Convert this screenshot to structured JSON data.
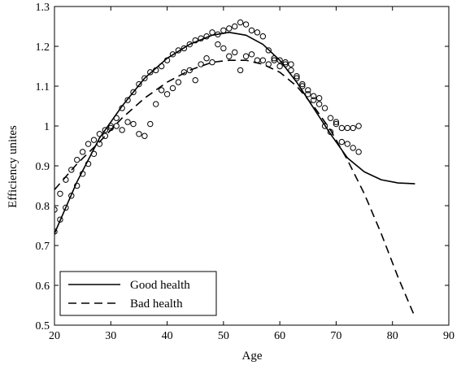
{
  "chart_data": {
    "type": "line",
    "title": "",
    "xlabel": "Age",
    "ylabel": "Efficiency unites",
    "xlim": [
      20,
      90
    ],
    "ylim": [
      0.5,
      1.3
    ],
    "xticks": [
      20,
      30,
      40,
      50,
      60,
      70,
      80,
      90
    ],
    "yticks": [
      0.5,
      0.6,
      0.7,
      0.8,
      0.9,
      1.0,
      1.1,
      1.2,
      1.3
    ],
    "xtick_labels": [
      "20",
      "30",
      "40",
      "50",
      "60",
      "70",
      "80",
      "90"
    ],
    "ytick_labels": [
      "0.5",
      "0.6",
      "0.7",
      "0.8",
      "0.9",
      "1",
      "1.1",
      "1.2",
      "1.3"
    ],
    "grid": false,
    "legend_position": "bottom-left",
    "series": [
      {
        "name": "Good health",
        "style": "solid",
        "color": "#000000",
        "x": [
          20,
          24,
          28,
          32,
          36,
          40,
          44,
          48,
          51,
          54,
          57,
          60,
          63,
          66,
          69,
          72,
          75,
          78,
          81,
          84
        ],
        "y": [
          0.73,
          0.86,
          0.97,
          1.05,
          1.12,
          1.17,
          1.205,
          1.228,
          1.235,
          1.228,
          1.205,
          1.165,
          1.11,
          1.045,
          0.98,
          0.92,
          0.885,
          0.865,
          0.857,
          0.855
        ]
      },
      {
        "name": "Bad health",
        "style": "dashed",
        "color": "#000000",
        "x": [
          20,
          24,
          28,
          32,
          36,
          40,
          44,
          48,
          51,
          54,
          57,
          60,
          63,
          66,
          69,
          72,
          75,
          78,
          81,
          84
        ],
        "y": [
          0.84,
          0.905,
          0.96,
          1.02,
          1.07,
          1.11,
          1.14,
          1.16,
          1.165,
          1.165,
          1.155,
          1.135,
          1.1,
          1.05,
          0.99,
          0.915,
          0.83,
          0.73,
          0.62,
          0.52
        ]
      },
      {
        "name": "",
        "style": "markers",
        "marker": "circle",
        "color": "#000000",
        "x": [
          20,
          21,
          22,
          23,
          24,
          25,
          26,
          27,
          28,
          29,
          30,
          31,
          32,
          33,
          34,
          35,
          36,
          37,
          38,
          39,
          40,
          41,
          42,
          43,
          44,
          45,
          46,
          47,
          48,
          49,
          50,
          51,
          52,
          53,
          54,
          55,
          56,
          57,
          58,
          59,
          60,
          61,
          62,
          63,
          64,
          65,
          66,
          67,
          68,
          69,
          70,
          71,
          72,
          73,
          74
        ],
        "y": [
          0.735,
          0.765,
          0.795,
          0.825,
          0.85,
          0.88,
          0.905,
          0.93,
          0.955,
          0.975,
          1.0,
          1.02,
          1.045,
          1.065,
          1.085,
          1.105,
          1.12,
          1.135,
          1.14,
          1.15,
          1.165,
          1.18,
          1.19,
          1.195,
          1.205,
          1.215,
          1.22,
          1.225,
          1.235,
          1.23,
          1.24,
          1.245,
          1.25,
          1.26,
          1.255,
          1.24,
          1.235,
          1.225,
          1.19,
          1.17,
          1.165,
          1.155,
          1.14,
          1.12,
          1.1,
          1.09,
          1.075,
          1.055,
          1.045,
          1.02,
          1.01,
          0.995,
          0.995,
          0.995,
          1.0
        ]
      },
      {
        "name": "",
        "style": "markers",
        "marker": "circle",
        "color": "#000000",
        "x": [
          20,
          21,
          22,
          23,
          24,
          25,
          26,
          27,
          28,
          29,
          30,
          31,
          32,
          33,
          34,
          35,
          36,
          37,
          38,
          39,
          40,
          41,
          42,
          43,
          44,
          45,
          46,
          47,
          48,
          49,
          50,
          51,
          52,
          53,
          54,
          55,
          56,
          57,
          58,
          59,
          60,
          61,
          62,
          63,
          64,
          65,
          66,
          67,
          68,
          69,
          70,
          71,
          72,
          73,
          74
        ],
        "y": [
          0.79,
          0.83,
          0.865,
          0.89,
          0.915,
          0.935,
          0.955,
          0.965,
          0.98,
          0.99,
          0.995,
          1.0,
          0.99,
          1.01,
          1.005,
          0.98,
          0.975,
          1.005,
          1.055,
          1.09,
          1.08,
          1.095,
          1.11,
          1.135,
          1.14,
          1.115,
          1.155,
          1.17,
          1.16,
          1.205,
          1.195,
          1.175,
          1.185,
          1.14,
          1.175,
          1.18,
          1.165,
          1.165,
          1.155,
          1.165,
          1.15,
          1.16,
          1.155,
          1.125,
          1.105,
          1.08,
          1.065,
          1.07,
          1.0,
          0.985,
          1.005,
          0.96,
          0.955,
          0.945,
          0.935
        ]
      }
    ]
  }
}
